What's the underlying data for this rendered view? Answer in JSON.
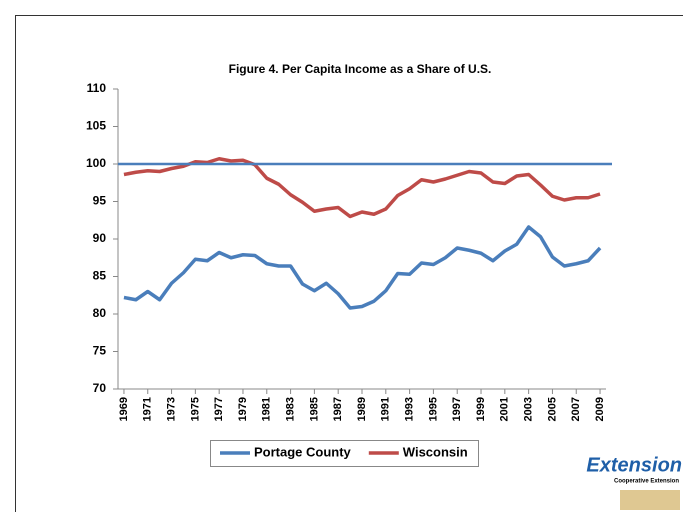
{
  "chart_data": {
    "type": "line",
    "title": "Figure 4. Per Capita Income as a Share of U.S.",
    "x": [
      1969,
      1970,
      1971,
      1972,
      1973,
      1974,
      1975,
      1976,
      1977,
      1978,
      1979,
      1980,
      1981,
      1982,
      1983,
      1984,
      1985,
      1986,
      1987,
      1988,
      1989,
      1990,
      1991,
      1992,
      1993,
      1994,
      1995,
      1996,
      1997,
      1998,
      1999,
      2000,
      2001,
      2002,
      2003,
      2004,
      2005,
      2006,
      2007,
      2008,
      2009
    ],
    "xlim": [
      1968.5,
      2009.5
    ],
    "xticks": [
      1969,
      1971,
      1973,
      1975,
      1977,
      1979,
      1981,
      1983,
      1985,
      1987,
      1989,
      1991,
      1993,
      1995,
      1997,
      1999,
      2001,
      2003,
      2005,
      2007,
      2009
    ],
    "ylim": [
      70,
      110
    ],
    "yticks": [
      70,
      75,
      80,
      85,
      90,
      95,
      100,
      105,
      110
    ],
    "reference_line": 100,
    "reference_color": "#4a7ebb",
    "legend": "bottom",
    "series": [
      {
        "name": "Portage County",
        "color": "#4a7ebb",
        "values": [
          82.2,
          81.9,
          83.0,
          81.9,
          84.1,
          85.5,
          87.3,
          87.1,
          88.2,
          87.5,
          87.9,
          87.8,
          86.7,
          86.4,
          86.4,
          84.0,
          83.1,
          84.1,
          82.7,
          80.8,
          81.0,
          81.7,
          83.1,
          85.4,
          85.3,
          86.8,
          86.6,
          87.5,
          88.8,
          88.5,
          88.1,
          87.1,
          88.4,
          89.3,
          91.6,
          90.3,
          87.6,
          86.4,
          86.7,
          87.1,
          88.8
        ]
      },
      {
        "name": "Wisconsin",
        "color": "#be4b48",
        "values": [
          98.6,
          98.9,
          99.1,
          99.0,
          99.4,
          99.7,
          100.3,
          100.2,
          100.7,
          100.4,
          100.5,
          99.9,
          98.1,
          97.3,
          95.9,
          94.9,
          93.7,
          94.0,
          94.2,
          93.0,
          93.6,
          93.3,
          94.0,
          95.8,
          96.7,
          97.9,
          97.6,
          98.0,
          98.5,
          99.0,
          98.8,
          97.6,
          97.4,
          98.4,
          98.6,
          97.2,
          95.7,
          95.2,
          95.5,
          95.5,
          96.0
        ]
      }
    ]
  },
  "logo": {
    "text": "Extension",
    "subtext": "Cooperative Extension"
  }
}
